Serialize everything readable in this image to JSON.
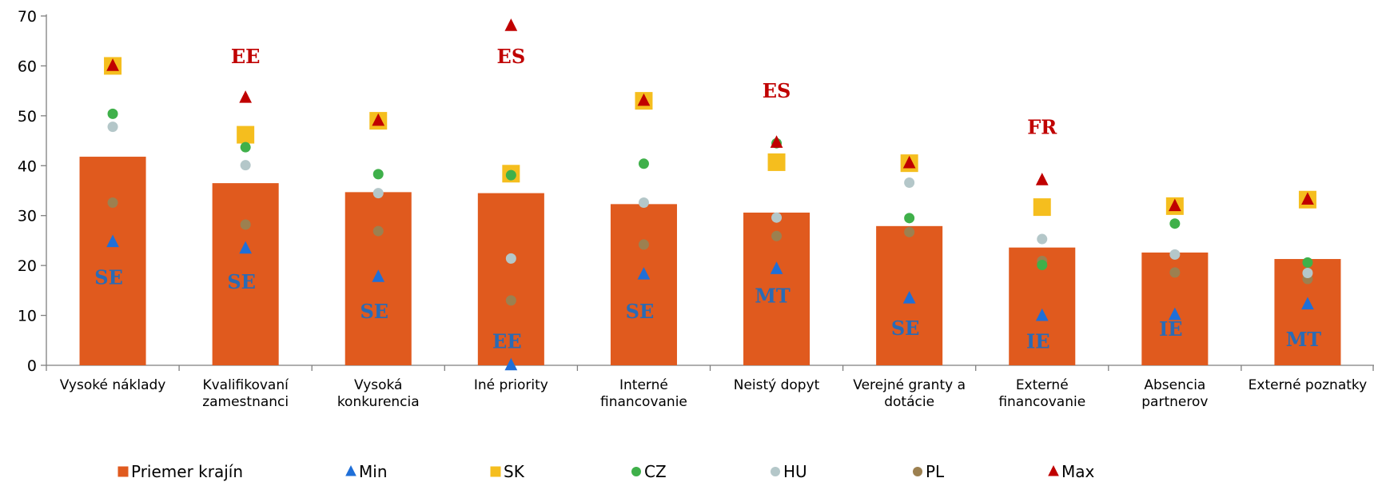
{
  "chart_data": {
    "type": "bar",
    "ylim": [
      0,
      70
    ],
    "yticks": [
      0,
      10,
      20,
      30,
      40,
      50,
      60,
      70
    ],
    "grid": false,
    "legend_position": "bottom",
    "categories": [
      [
        "Vysoké náklady"
      ],
      [
        "Kvalifikovaní",
        "zamestnanci"
      ],
      [
        "Vysoká",
        "konkurencia"
      ],
      [
        "Iné priority"
      ],
      [
        "Interné",
        "financovanie"
      ],
      [
        "Neistý dopyt"
      ],
      [
        "Verejné granty a",
        "dotácie"
      ],
      [
        "Externé",
        "financovanie"
      ],
      [
        "Absencia",
        "partnerov"
      ],
      [
        "Externé poznatky"
      ]
    ],
    "series": [
      {
        "name": "Priemer krajín",
        "kind": "bar",
        "marker": "square",
        "color": "#E05A1E",
        "values": [
          41.8,
          36.5,
          34.7,
          34.5,
          32.3,
          30.6,
          27.9,
          23.6,
          22.6,
          21.3
        ]
      },
      {
        "name": "Min",
        "kind": "marker",
        "marker": "triangle",
        "color": "#1F6FD8",
        "values": [
          24.7,
          23.4,
          17.7,
          0.0,
          18.2,
          19.3,
          13.4,
          9.9,
          10.1,
          12.2
        ]
      },
      {
        "name": "SK",
        "kind": "marker",
        "marker": "square",
        "color": "#F5BE1E",
        "values": [
          60.0,
          46.2,
          49.0,
          38.4,
          53.0,
          40.7,
          40.5,
          31.7,
          31.9,
          33.2
        ]
      },
      {
        "name": "CZ",
        "kind": "marker",
        "marker": "circle",
        "color": "#3FB04A",
        "values": [
          50.4,
          43.7,
          38.3,
          38.1,
          40.4,
          44.5,
          29.5,
          20.1,
          28.4,
          20.6
        ]
      },
      {
        "name": "HU",
        "kind": "marker",
        "marker": "circle",
        "color": "#B4C7C9",
        "values": [
          47.8,
          40.1,
          34.5,
          21.4,
          32.6,
          29.6,
          36.6,
          25.3,
          22.2,
          18.5
        ]
      },
      {
        "name": "PL",
        "kind": "marker",
        "marker": "circle",
        "color": "#9C8050",
        "values": [
          32.6,
          28.2,
          26.9,
          13.0,
          24.2,
          25.9,
          26.7,
          20.9,
          18.6,
          17.3
        ]
      },
      {
        "name": "Max",
        "kind": "marker",
        "marker": "triangle",
        "color": "#C00000",
        "values": [
          60.0,
          53.6,
          49.0,
          68.0,
          53.0,
          44.6,
          40.5,
          37.1,
          31.9,
          33.2
        ]
      }
    ],
    "min_country_labels": [
      "SE",
      "SE",
      "SE",
      "EE",
      "SE",
      "MT",
      "SE",
      "IE",
      "IE",
      "MT"
    ],
    "max_country_labels": [
      null,
      "EE",
      null,
      "ES",
      null,
      "ES",
      null,
      "FR",
      null,
      null
    ],
    "min_label_values": [
      17.7,
      16.8,
      10.9,
      4.9,
      10.9,
      14.0,
      7.5,
      4.9,
      7.4,
      5.3
    ],
    "max_label_values": [
      null,
      62.0,
      null,
      62.0,
      null,
      55.1,
      null,
      47.8,
      null,
      null
    ]
  }
}
